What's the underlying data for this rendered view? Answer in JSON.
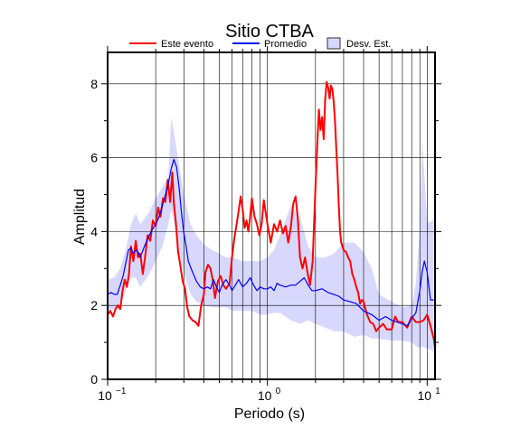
{
  "chart_data": {
    "type": "line",
    "title": "Sitio CTBA",
    "xlabel": "Periodo (s)",
    "ylabel": "Amplitud",
    "x_scale": "log",
    "xlim": [
      0.1,
      11.2
    ],
    "ylim": [
      0,
      8.85
    ],
    "x_major_ticks": [
      {
        "value": 0.1,
        "base": "10",
        "exp": "−1"
      },
      {
        "value": 1,
        "base": "10",
        "exp": "0"
      },
      {
        "value": 10,
        "base": "10",
        "exp": "1"
      }
    ],
    "y_ticks": [
      0,
      2,
      4,
      6,
      8
    ],
    "grid": true,
    "legend": {
      "placement": "top",
      "entries": [
        {
          "label": "Este evento",
          "color": "#ff0000",
          "kind": "line"
        },
        {
          "label": "Promedio",
          "color": "#0000ff",
          "kind": "line"
        },
        {
          "label": "Desv. Est.",
          "color": "#d8d8ff",
          "kind": "band"
        }
      ]
    },
    "series": [
      {
        "name": "Este evento",
        "color": "#ff0000",
        "x": [
          0.1,
          0.104,
          0.108,
          0.112,
          0.116,
          0.12,
          0.124,
          0.128,
          0.132,
          0.136,
          0.14,
          0.145,
          0.15,
          0.155,
          0.16,
          0.166,
          0.172,
          0.178,
          0.185,
          0.192,
          0.2,
          0.207,
          0.214,
          0.222,
          0.23,
          0.238,
          0.246,
          0.254,
          0.26,
          0.268,
          0.276,
          0.285,
          0.295,
          0.305,
          0.315,
          0.325,
          0.34,
          0.355,
          0.37,
          0.385,
          0.4,
          0.41,
          0.425,
          0.44,
          0.455,
          0.47,
          0.49,
          0.51,
          0.53,
          0.55,
          0.58,
          0.6,
          0.62,
          0.65,
          0.68,
          0.7,
          0.72,
          0.74,
          0.76,
          0.78,
          0.8,
          0.83,
          0.86,
          0.89,
          0.92,
          0.95,
          1.0,
          1.05,
          1.1,
          1.15,
          1.2,
          1.25,
          1.3,
          1.35,
          1.4,
          1.45,
          1.5,
          1.55,
          1.6,
          1.66,
          1.72,
          1.78,
          1.85,
          1.92,
          2.0,
          2.05,
          2.1,
          2.15,
          2.2,
          2.25,
          2.3,
          2.35,
          2.4,
          2.45,
          2.5,
          2.55,
          2.6,
          2.65,
          2.7,
          2.75,
          2.8,
          2.85,
          2.9,
          3.0,
          3.1,
          3.2,
          3.3,
          3.4,
          3.5,
          3.6,
          3.7,
          3.8,
          3.9,
          4.0,
          4.2,
          4.4,
          4.6,
          4.8,
          5.0,
          5.3,
          5.6,
          6.0,
          6.3,
          6.6,
          7.0,
          7.5,
          8.0,
          8.5,
          9.0,
          9.5,
          10.0,
          10.5,
          11.0,
          11.2
        ],
        "y": [
          1.75,
          1.85,
          1.7,
          1.9,
          2.0,
          1.9,
          2.4,
          2.7,
          2.5,
          2.85,
          3.6,
          3.2,
          3.75,
          3.3,
          3.4,
          2.85,
          3.35,
          3.9,
          3.75,
          4.3,
          4.15,
          4.65,
          4.4,
          4.9,
          4.8,
          5.4,
          4.8,
          5.6,
          4.75,
          4.2,
          3.45,
          3.1,
          2.65,
          2.45,
          1.95,
          1.7,
          1.6,
          1.55,
          1.45,
          2.0,
          2.3,
          2.9,
          3.1,
          3.0,
          2.7,
          2.2,
          2.65,
          2.8,
          2.55,
          2.45,
          2.6,
          3.3,
          3.8,
          4.35,
          4.95,
          4.6,
          4.1,
          4.3,
          4.0,
          4.4,
          4.9,
          4.4,
          4.2,
          3.9,
          4.2,
          4.85,
          4.2,
          3.7,
          4.2,
          4.0,
          4.3,
          3.95,
          4.15,
          3.7,
          4.1,
          4.75,
          4.95,
          4.35,
          3.3,
          3.0,
          3.3,
          2.9,
          2.55,
          3.2,
          5.2,
          6.3,
          7.3,
          6.75,
          7.1,
          6.5,
          7.6,
          8.05,
          7.9,
          7.6,
          7.95,
          7.85,
          7.5,
          7.0,
          6.2,
          5.5,
          4.7,
          4.0,
          3.7,
          3.5,
          3.45,
          3.3,
          3.2,
          2.85,
          2.7,
          2.5,
          2.35,
          2.05,
          2.15,
          2.1,
          1.75,
          1.55,
          1.5,
          1.3,
          1.4,
          1.5,
          1.35,
          1.35,
          1.7,
          1.55,
          1.55,
          1.4,
          1.7,
          1.55,
          1.55,
          1.6,
          1.75,
          1.45,
          1.1,
          0.85
        ]
      },
      {
        "name": "Promedio",
        "color": "#0000ff",
        "x": [
          0.1,
          0.105,
          0.11,
          0.115,
          0.12,
          0.125,
          0.13,
          0.135,
          0.14,
          0.145,
          0.15,
          0.155,
          0.16,
          0.17,
          0.18,
          0.19,
          0.2,
          0.21,
          0.22,
          0.23,
          0.24,
          0.25,
          0.26,
          0.27,
          0.28,
          0.29,
          0.3,
          0.31,
          0.32,
          0.34,
          0.36,
          0.38,
          0.4,
          0.42,
          0.44,
          0.46,
          0.48,
          0.5,
          0.52,
          0.55,
          0.58,
          0.6,
          0.63,
          0.66,
          0.7,
          0.74,
          0.78,
          0.82,
          0.86,
          0.9,
          0.95,
          1.0,
          1.05,
          1.1,
          1.15,
          1.2,
          1.3,
          1.4,
          1.5,
          1.6,
          1.7,
          1.8,
          1.9,
          2.0,
          2.2,
          2.4,
          2.6,
          2.8,
          3.0,
          3.3,
          3.6,
          4.0,
          4.5,
          5.0,
          5.5,
          6.0,
          6.5,
          7.0,
          7.5,
          8.0,
          8.5,
          9.0,
          9.3,
          9.6,
          10.0,
          10.5,
          11.0
        ],
        "y": [
          2.3,
          2.35,
          2.3,
          2.3,
          2.55,
          2.8,
          3.15,
          3.5,
          3.55,
          3.4,
          3.5,
          3.45,
          3.3,
          3.6,
          3.85,
          4.05,
          4.2,
          4.4,
          4.7,
          5.0,
          5.3,
          5.7,
          5.95,
          5.75,
          5.2,
          4.5,
          3.95,
          3.6,
          3.2,
          2.9,
          2.65,
          2.5,
          2.45,
          2.5,
          2.45,
          2.7,
          2.5,
          2.35,
          2.55,
          2.7,
          2.55,
          2.4,
          2.55,
          2.7,
          2.5,
          2.6,
          2.75,
          2.55,
          2.4,
          2.5,
          2.45,
          2.45,
          2.5,
          2.4,
          2.6,
          2.55,
          2.5,
          2.55,
          2.55,
          2.65,
          2.75,
          2.55,
          2.4,
          2.4,
          2.45,
          2.35,
          2.3,
          2.25,
          2.15,
          2.1,
          2.05,
          1.85,
          1.75,
          1.6,
          1.7,
          1.6,
          1.55,
          1.5,
          1.45,
          1.65,
          1.8,
          2.4,
          2.9,
          3.2,
          2.9,
          2.15,
          2.15
        ]
      },
      {
        "name": "Desv. Est.",
        "color": "#d8d8ff",
        "kind": "band",
        "x": [
          0.1,
          0.11,
          0.12,
          0.13,
          0.14,
          0.15,
          0.16,
          0.18,
          0.2,
          0.22,
          0.24,
          0.25,
          0.26,
          0.28,
          0.3,
          0.33,
          0.36,
          0.4,
          0.45,
          0.5,
          0.55,
          0.6,
          0.7,
          0.8,
          0.9,
          1.0,
          1.1,
          1.2,
          1.4,
          1.6,
          1.8,
          2.0,
          2.3,
          2.6,
          3.0,
          3.5,
          4.0,
          4.5,
          5.0,
          6.0,
          7.0,
          8.0,
          8.5,
          9.0,
          9.3,
          9.6,
          10.0,
          10.5,
          11.0
        ],
        "upper": [
          2.7,
          2.75,
          3.0,
          3.5,
          4.2,
          4.5,
          4.2,
          4.5,
          4.9,
          5.2,
          5.5,
          7.1,
          6.7,
          5.8,
          5.0,
          4.2,
          3.9,
          3.65,
          3.5,
          3.4,
          3.3,
          3.3,
          3.2,
          3.2,
          3.2,
          3.3,
          3.5,
          3.9,
          4.7,
          4.4,
          3.6,
          3.3,
          3.3,
          3.4,
          3.7,
          3.7,
          3.45,
          3.0,
          2.3,
          2.1,
          1.95,
          2.0,
          2.6,
          4.1,
          6.5,
          5.5,
          4.25,
          4.25,
          4.35
        ],
        "lower": [
          1.85,
          1.9,
          2.0,
          2.4,
          2.75,
          2.75,
          2.5,
          2.8,
          3.2,
          3.6,
          4.2,
          4.6,
          4.3,
          3.4,
          2.9,
          2.3,
          2.1,
          2.0,
          1.95,
          1.95,
          1.95,
          1.85,
          1.85,
          1.85,
          1.75,
          1.75,
          1.8,
          1.8,
          1.6,
          1.5,
          1.6,
          1.5,
          1.4,
          1.3,
          1.3,
          1.15,
          1.2,
          1.1,
          1.1,
          1.05,
          1.05,
          1.0,
          0.9,
          0.85,
          0.9,
          0.85,
          0.85,
          0.8,
          0.75
        ]
      }
    ]
  }
}
